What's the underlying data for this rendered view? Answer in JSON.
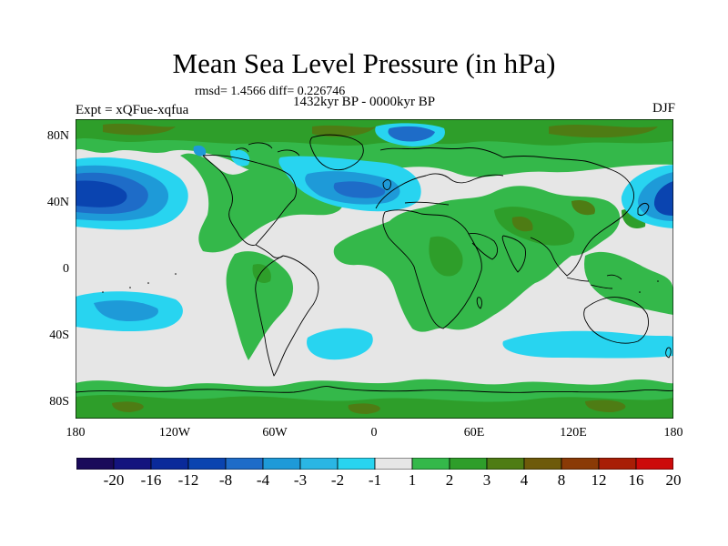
{
  "title": "Mean Sea Level Pressure (in hPa)",
  "stats": "rmsd= 1.4566 diff= 0.226746",
  "experiment": "Expt = xQFue-xqfua",
  "period": "1432kyr BP - 0000kyr BP",
  "season": "DJF",
  "axes": {
    "lat_ticks": [
      "80N",
      "40N",
      "0",
      "40S",
      "80S"
    ],
    "lon_ticks": [
      "180",
      "120W",
      "60W",
      "0",
      "60E",
      "120E",
      "180"
    ]
  },
  "colorbar": {
    "labels": [
      "-20",
      "-16",
      "-12",
      "-8",
      "-4",
      "-3",
      "-2",
      "-1",
      "1",
      "2",
      "3",
      "4",
      "8",
      "12",
      "16",
      "20"
    ],
    "colors": [
      "#1a0a5a",
      "#14147e",
      "#0a2a9a",
      "#0a44b0",
      "#1e6cc8",
      "#1e9ad8",
      "#2ab6e4",
      "#28d4f0",
      "#e6e6e6",
      "#34b84a",
      "#2e9e2a",
      "#4e7c14",
      "#6e5a0a",
      "#8a3a06",
      "#a81e06",
      "#cc0a0a"
    ]
  },
  "colors": {
    "neutral": "#e6e6e6",
    "pos_weak": "#34b84a",
    "pos_mid": "#2e9e2a",
    "pos_strong": "#4e7c14",
    "pos_brown": "#6e5a0a",
    "neg_cyan": "#28d4f0",
    "neg_light": "#2ab6e4",
    "neg_mid": "#1e9ad8",
    "neg_blue": "#1e6cc8",
    "neg_deep": "#0a44b0"
  }
}
